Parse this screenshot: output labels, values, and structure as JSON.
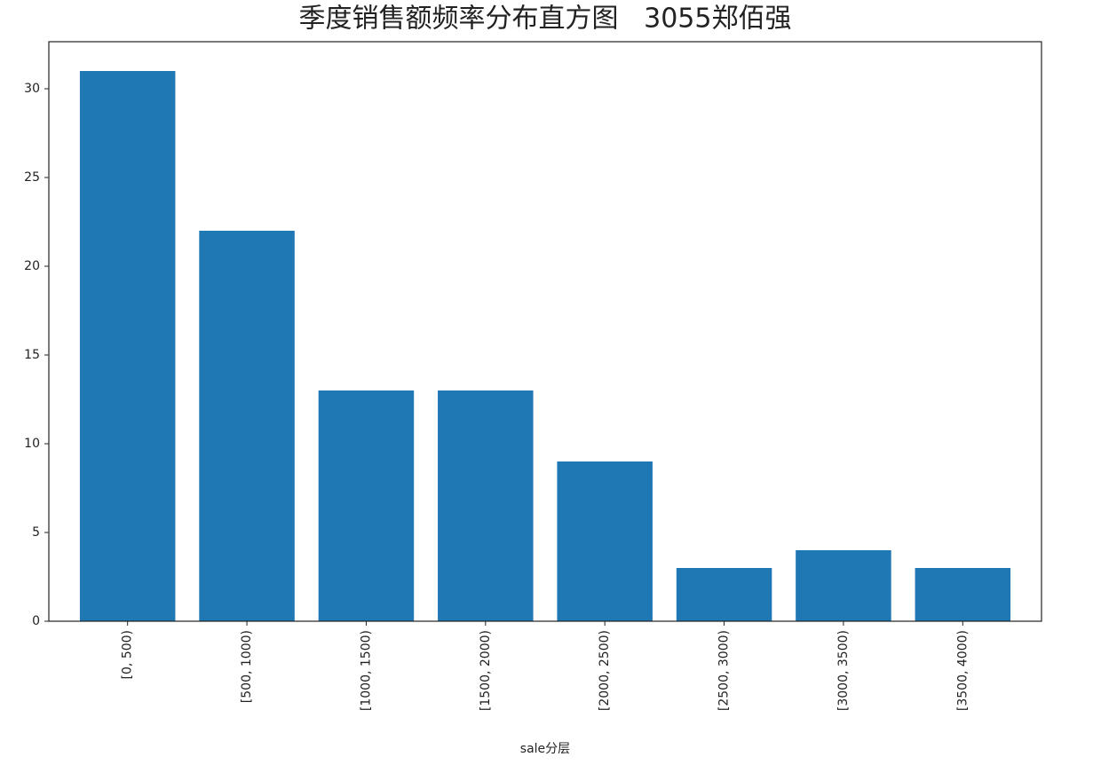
{
  "chart_data": {
    "type": "bar",
    "title": "季度销售额频率分布直方图   3055郑佰强",
    "x_label": "sale分层",
    "categories": [
      "[0, 500)",
      "[500, 1000)",
      "[1000, 1500)",
      "[1500, 2000)",
      "[2000, 2500)",
      "[2500, 3000)",
      "[3000, 3500)",
      "[3500, 4000)"
    ],
    "values": [
      31,
      22,
      13,
      13,
      9,
      3,
      4,
      3
    ],
    "color": "#1f77b4",
    "ylim": [
      0,
      32.65
    ],
    "yticks": [
      0,
      5,
      10,
      15,
      20,
      25,
      30
    ],
    "grid": false
  }
}
